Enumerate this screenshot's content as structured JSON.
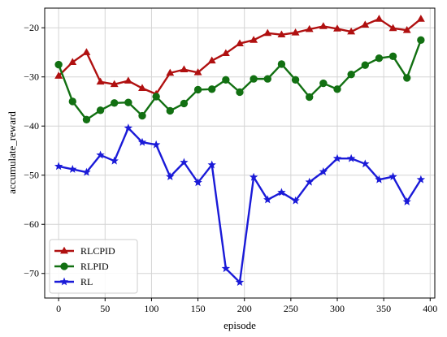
{
  "chart_data": {
    "type": "line",
    "xlabel": "episode",
    "ylabel": "accumulate_reward",
    "xlim": [
      -15,
      405
    ],
    "ylim": [
      -75,
      -16
    ],
    "xticks": [
      0,
      50,
      100,
      150,
      200,
      250,
      300,
      350,
      400
    ],
    "yticks": [
      -70,
      -60,
      -50,
      -40,
      -30,
      -20
    ],
    "grid": true,
    "legend_position": "lower-left",
    "x": [
      0,
      15,
      30,
      45,
      60,
      75,
      90,
      105,
      120,
      135,
      150,
      165,
      180,
      195,
      210,
      225,
      240,
      255,
      270,
      285,
      300,
      315,
      330,
      345,
      360,
      375,
      390
    ],
    "series": [
      {
        "name": "RLCPID",
        "color": "#b01010",
        "marker": "triangle",
        "values": [
          -29.8,
          -27.0,
          -25.0,
          -31.0,
          -31.5,
          -30.8,
          -32.3,
          -33.5,
          -29.2,
          -28.5,
          -29.1,
          -26.7,
          -25.2,
          -23.2,
          -22.5,
          -21.1,
          -21.4,
          -21.0,
          -20.3,
          -19.7,
          -20.2,
          -20.8,
          -19.4,
          -18.2,
          -20.1,
          -20.5,
          -18.2
        ]
      },
      {
        "name": "RLPID",
        "color": "#127012",
        "marker": "circle",
        "values": [
          -27.5,
          -35.0,
          -38.7,
          -36.8,
          -35.3,
          -35.2,
          -37.9,
          -34.0,
          -36.9,
          -35.4,
          -32.6,
          -32.5,
          -30.6,
          -33.1,
          -30.4,
          -30.4,
          -27.4,
          -30.6,
          -34.1,
          -31.3,
          -32.5,
          -29.5,
          -27.6,
          -26.2,
          -25.8,
          -30.2,
          -22.5
        ]
      },
      {
        "name": "RL",
        "color": "#1a1ad8",
        "marker": "star",
        "values": [
          -48.2,
          -48.8,
          -49.4,
          -45.9,
          -47.1,
          -40.4,
          -43.3,
          -43.8,
          -50.3,
          -47.4,
          -51.5,
          -47.9,
          -69.0,
          -71.8,
          -50.4,
          -55.0,
          -53.5,
          -55.2,
          -51.4,
          -49.3,
          -46.6,
          -46.6,
          -47.7,
          -50.9,
          -50.3,
          -55.4,
          -50.9
        ]
      }
    ]
  }
}
